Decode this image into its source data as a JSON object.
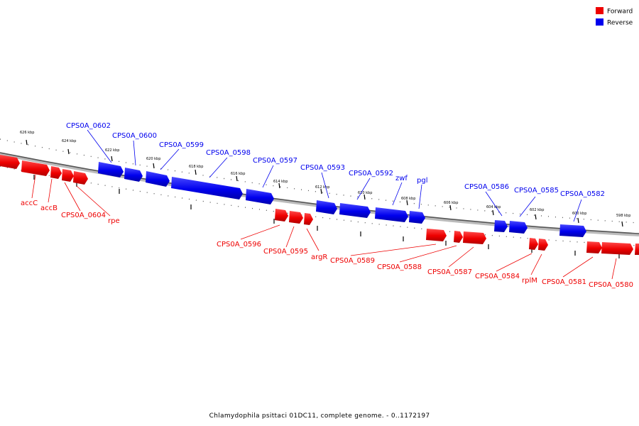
{
  "caption": "Chlamydophila psittaci 01DC11, complete genome. - 0..1172197",
  "legend": {
    "forward": {
      "label": "Forward",
      "color": "#ee0000"
    },
    "reverse": {
      "label": "Reverse",
      "color": "#0000ee"
    }
  },
  "ticks": [
    "626 kbp",
    "624 kbp",
    "622 kbp",
    "620 kbp",
    "618 kbp",
    "616 kbp",
    "614 kbp",
    "612 kbp",
    "610 kbp",
    "608 kbp",
    "606 kbp",
    "604 kbp",
    "602 kbp",
    "600 kbp",
    "598 kbp"
  ],
  "genes": {
    "reverse": [
      "CPS0A_0602",
      "CPS0A_0600",
      "CPS0A_0599",
      "CPS0A_0598",
      "CPS0A_0597",
      "CPS0A_0593",
      "CPS0A_0592",
      "zwf",
      "pgl",
      "CPS0A_0586",
      "CPS0A_0585",
      "CPS0A_0582"
    ],
    "forward": [
      "accC",
      "accB",
      "CPS0A_0604",
      "rpe",
      "CPS0A_0596",
      "CPS0A_0595",
      "argR",
      "CPS0A_0589",
      "CPS0A_0588",
      "CPS0A_0587",
      "CPS0A_0584",
      "rplM",
      "CPS0A_0581",
      "CPS0A_0580"
    ]
  }
}
